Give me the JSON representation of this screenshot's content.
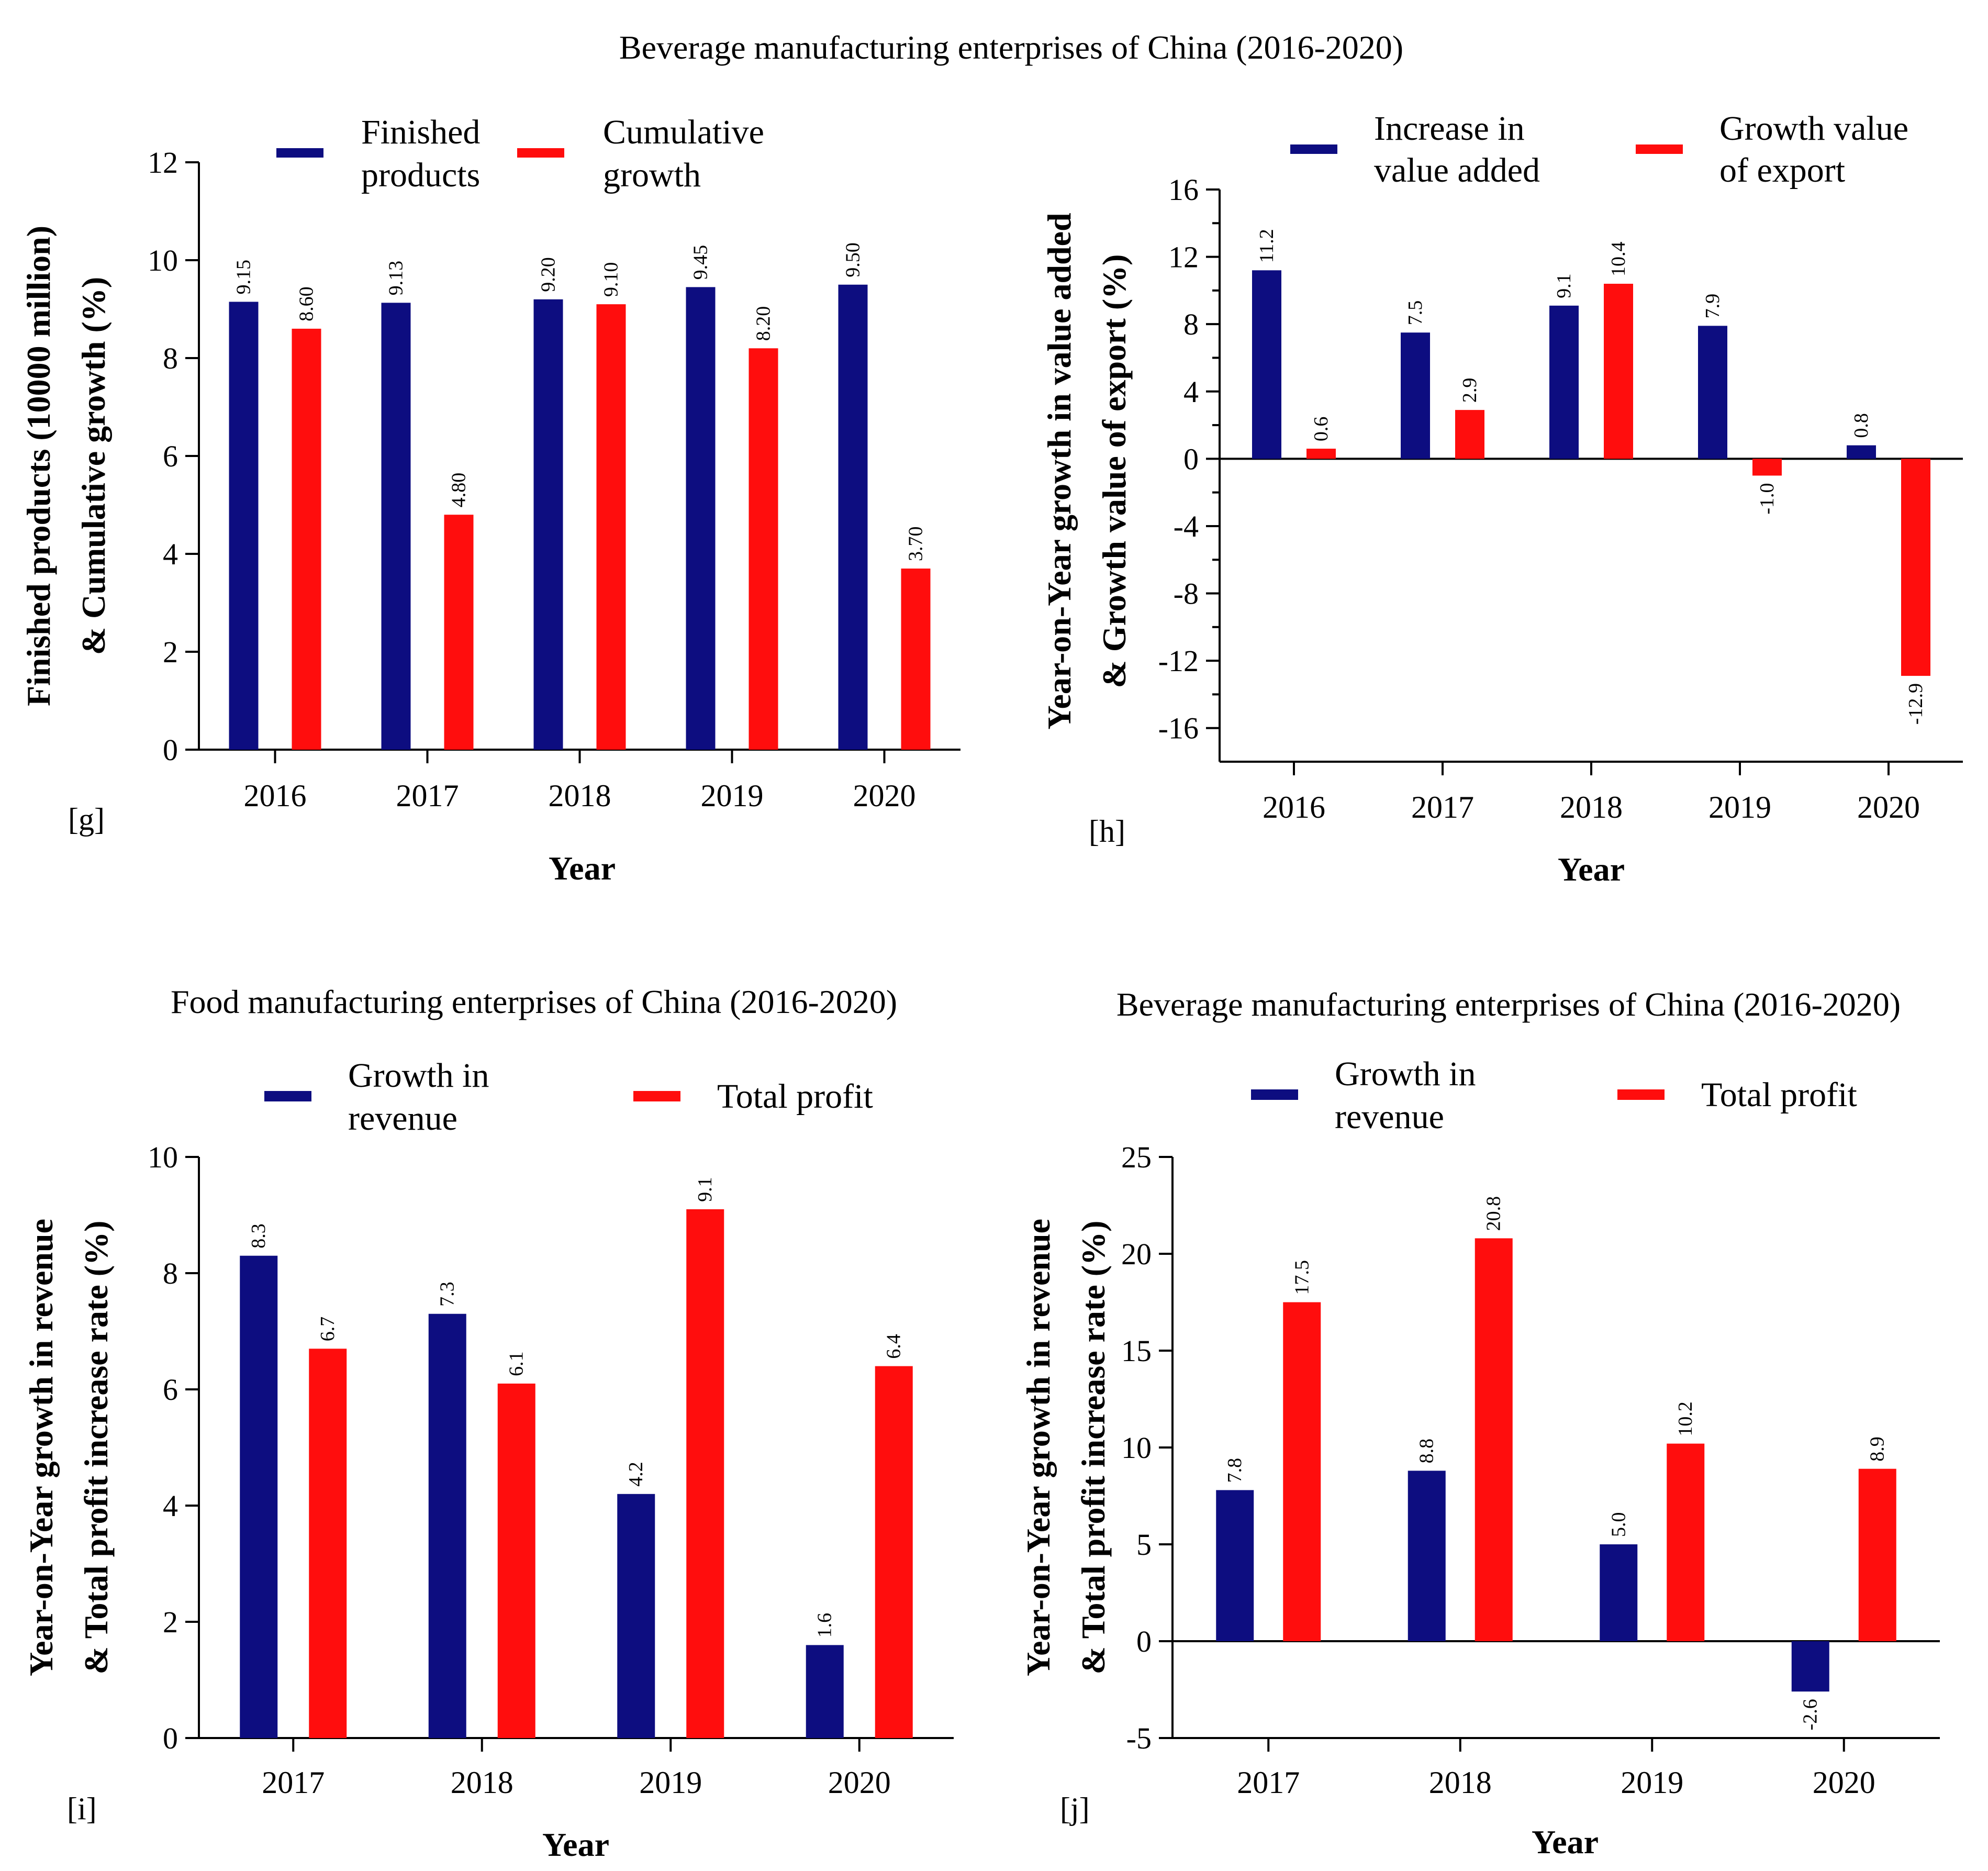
{
  "colors": {
    "series1": "#0d0d80",
    "series2": "#ff0d0d"
  },
  "titles": {
    "top": "Beverage manufacturing enterprises of China (2016-2020)",
    "bottom_left": "Food manufacturing enterprises of China (2016-2020)",
    "bottom_right": "Beverage manufacturing enterprises of China (2016-2020)"
  },
  "chart_data": [
    {
      "panel": "[g]",
      "type": "bar",
      "categories": [
        "2016",
        "2017",
        "2018",
        "2019",
        "2020"
      ],
      "series": [
        {
          "name": [
            "Finished",
            "products"
          ],
          "values": [
            9.15,
            9.13,
            9.2,
            9.45,
            9.5
          ],
          "labels": [
            "9.15",
            "9.13",
            "9.20",
            "9.45",
            "9.50"
          ]
        },
        {
          "name": [
            "Cumulative",
            "growth"
          ],
          "values": [
            8.6,
            4.8,
            9.1,
            8.2,
            3.7
          ],
          "labels": [
            "8.60",
            "4.80",
            "9.10",
            "8.20",
            "3.70"
          ]
        }
      ],
      "xlabel": "Year",
      "ylabel": [
        "Finished products (10000 million)",
        "& Cumulative growth (%)"
      ],
      "ylim": [
        0,
        12
      ],
      "yticks": [
        0,
        2,
        4,
        6,
        8,
        10,
        12
      ],
      "legend": "top"
    },
    {
      "panel": "[h]",
      "type": "bar",
      "categories": [
        "2016",
        "2017",
        "2018",
        "2019",
        "2020"
      ],
      "series": [
        {
          "name": [
            "Increase in",
            "value added"
          ],
          "values": [
            11.2,
            7.5,
            9.1,
            7.9,
            0.8
          ],
          "labels": [
            "11.2",
            "7.5",
            "9.1",
            "7.9",
            "0.8"
          ]
        },
        {
          "name": [
            "Growth value",
            "of export"
          ],
          "values": [
            0.6,
            2.9,
            10.4,
            -1.0,
            -12.9
          ],
          "labels": [
            "0.6",
            "2.9",
            "10.4",
            "-1.0",
            "-12.9"
          ]
        }
      ],
      "xlabel": "Year",
      "ylabel": [
        "Year-on-Year growth in value added",
        "& Growth value of export (%)"
      ],
      "ylim": [
        -18,
        16
      ],
      "yticks": [
        -16,
        -12,
        -8,
        -4,
        0,
        4,
        8,
        12,
        16
      ],
      "legend": "top"
    },
    {
      "panel": "[i]",
      "type": "bar",
      "categories": [
        "2017",
        "2018",
        "2019",
        "2020"
      ],
      "series": [
        {
          "name": [
            "Growth in",
            "revenue"
          ],
          "values": [
            8.3,
            7.3,
            4.2,
            1.6
          ],
          "labels": [
            "8.3",
            "7.3",
            "4.2",
            "1.6"
          ]
        },
        {
          "name": [
            "Total profit"
          ],
          "values": [
            6.7,
            6.1,
            9.1,
            6.4
          ],
          "labels": [
            "6.7",
            "6.1",
            "9.1",
            "6.4"
          ]
        }
      ],
      "xlabel": "Year",
      "ylabel": [
        "Year-on-Year growth in revenue",
        "& Total profit increase rate (%)"
      ],
      "ylim": [
        0,
        10
      ],
      "yticks": [
        0,
        2,
        4,
        6,
        8,
        10
      ],
      "legend": "top"
    },
    {
      "panel": "[j]",
      "type": "bar",
      "categories": [
        "2017",
        "2018",
        "2019",
        "2020"
      ],
      "series": [
        {
          "name": [
            "Growth in",
            "revenue"
          ],
          "values": [
            7.8,
            8.8,
            5.0,
            -2.6
          ],
          "labels": [
            "7.8",
            "8.8",
            "5.0",
            "-2.6"
          ]
        },
        {
          "name": [
            "Total profit"
          ],
          "values": [
            17.5,
            20.8,
            10.2,
            8.9
          ],
          "labels": [
            "17.5",
            "20.8",
            "10.2",
            "8.9"
          ]
        }
      ],
      "xlabel": "Year",
      "ylabel": [
        "Year-on-Year growth in revenue",
        "& Total profit increase rate (%)"
      ],
      "ylim": [
        -5,
        25
      ],
      "yticks": [
        -5,
        0,
        5,
        10,
        15,
        20,
        25
      ],
      "legend": "top"
    }
  ]
}
